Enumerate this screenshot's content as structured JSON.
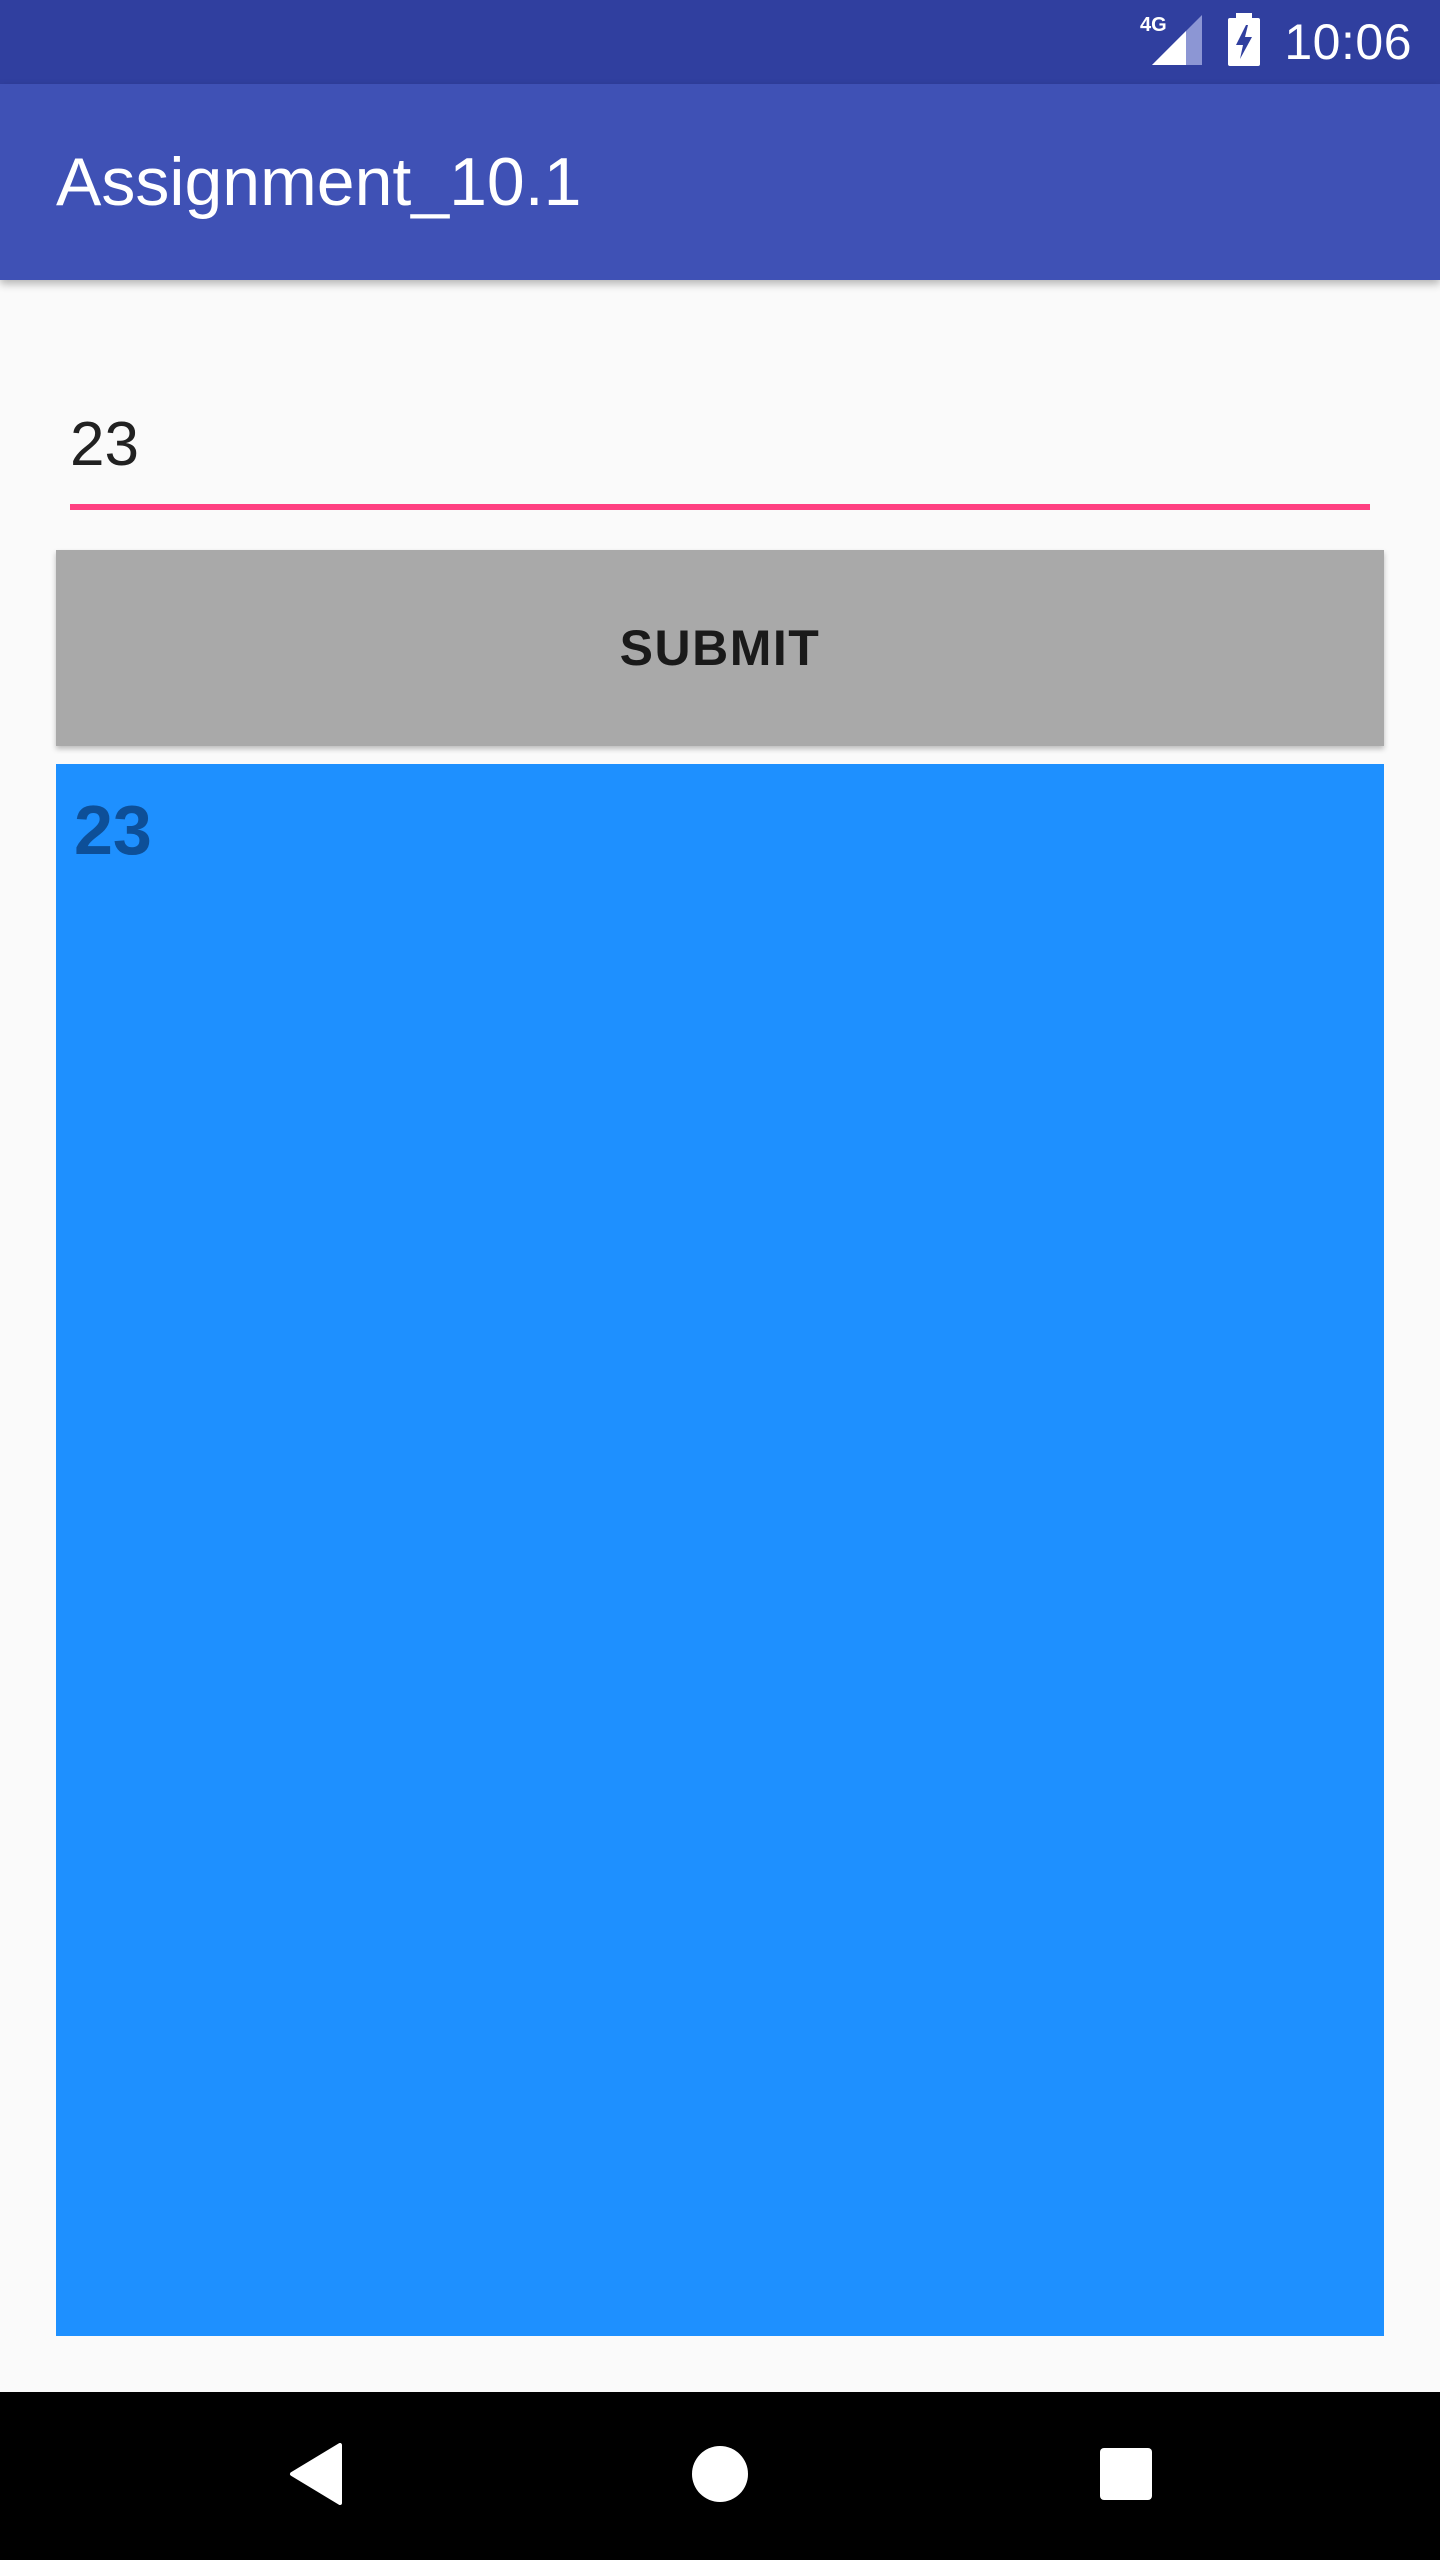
{
  "status_bar": {
    "network": "4G",
    "time": "10:06",
    "background": "#303f9f"
  },
  "app_bar": {
    "title": "Assignment_10.1",
    "background": "#3f51b5"
  },
  "input": {
    "value": "23",
    "underline_color": "#ff4081"
  },
  "submit_button": {
    "label": "SUBMIT",
    "background": "#a9a9a9"
  },
  "result": {
    "text": "23",
    "background": "#1e90ff",
    "text_color": "#0d4f98"
  },
  "navigation": {
    "back_icon": "back-triangle-icon",
    "home_icon": "home-circle-icon",
    "recents_icon": "recents-square-icon"
  }
}
